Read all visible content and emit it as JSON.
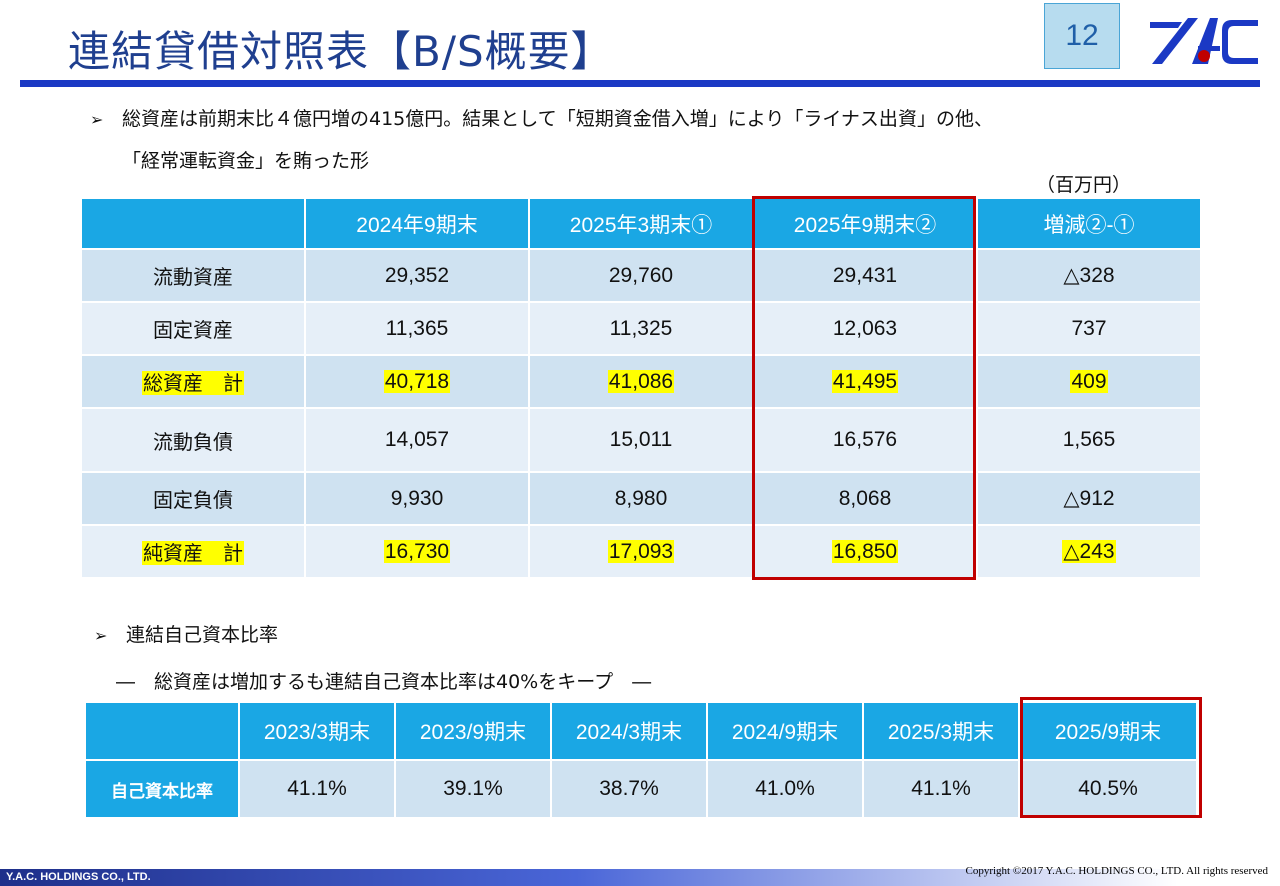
{
  "header": {
    "title": "連結貸借対照表【B/S概要】",
    "page_number": "12",
    "logo_icon": "yac-logo-icon"
  },
  "bullet1": {
    "line1": "総資産は前期末比４億円増の415億円。結果として「短期資金借入増」により「ライナス出資」の他、",
    "line2": "「経常運転資金」を賄った形"
  },
  "unit": "（百万円）",
  "bs_table": {
    "headers": [
      "",
      "2024年9期末",
      "2025年3期末①",
      "2025年9期末②",
      "増減②-①"
    ],
    "rows": [
      {
        "label": "流動資産",
        "values": [
          "29,352",
          "29,760",
          "29,431",
          "△328"
        ],
        "highlight": false
      },
      {
        "label": "固定資産",
        "values": [
          "11,365",
          "11,325",
          "12,063",
          "737"
        ],
        "highlight": false
      },
      {
        "label": "総資産　計",
        "values": [
          "40,718",
          "41,086",
          "41,495",
          "409"
        ],
        "highlight": true
      },
      {
        "label": "流動負債",
        "values": [
          "14,057",
          "15,011",
          "16,576",
          "1,565"
        ],
        "highlight": false
      },
      {
        "label": "固定負債",
        "values": [
          "9,930",
          "8,980",
          "8,068",
          "△912"
        ],
        "highlight": false
      },
      {
        "label": "純資産　計",
        "values": [
          "16,730",
          "17,093",
          "16,850",
          "△243"
        ],
        "highlight": true
      }
    ]
  },
  "bullet2": {
    "heading": "連結自己資本比率",
    "subtitle": "―　総資産は増加するも連結自己資本比率は40%をキープ　―"
  },
  "equity_table": {
    "headers": [
      "",
      "2023/3期末",
      "2023/9期末",
      "2024/3期末",
      "2024/9期末",
      "2025/3期末",
      "2025/9期末"
    ],
    "row_label": "自己資本比率",
    "values": [
      "41.1%",
      "39.1%",
      "38.7%",
      "41.0%",
      "41.1%",
      "40.5%"
    ]
  },
  "footer": {
    "company": "Y.A.C. HOLDINGS CO., LTD.",
    "copyright": "Copyright ©2017 Y.A.C. HOLDINGS CO., LTD.  All rights reserved"
  },
  "colors": {
    "title": "#1f3f8f",
    "rule": "#1b39c4",
    "header_blue": "#1aa7e4",
    "row_a": "#cfe2f1",
    "row_b": "#e6eff8",
    "highlight": "#ffff00",
    "red_frame": "#c00000"
  }
}
